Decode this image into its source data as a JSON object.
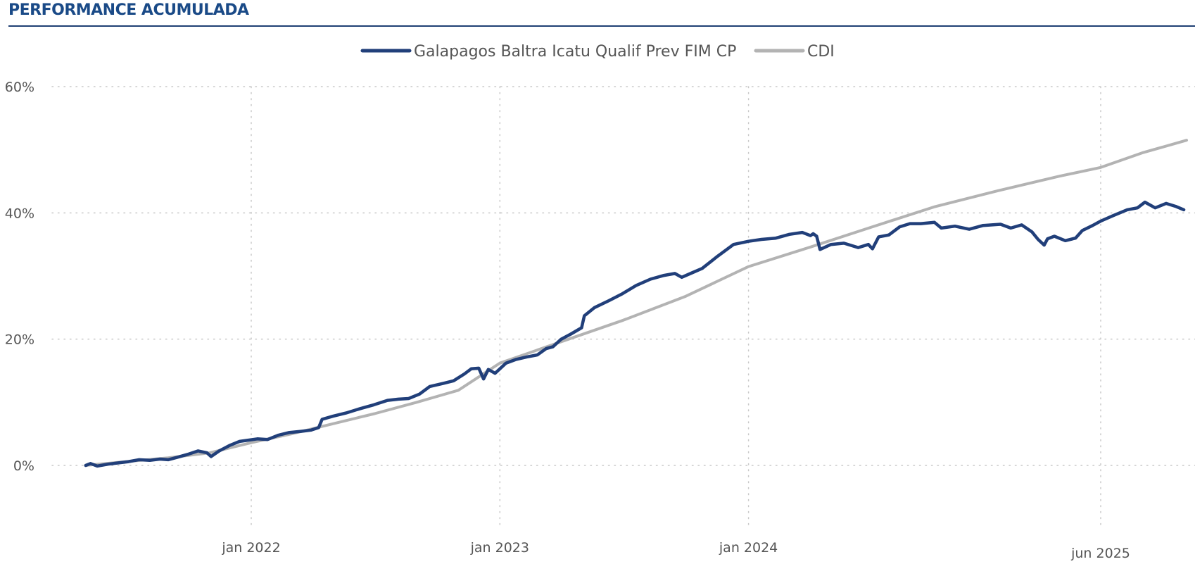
{
  "header": {
    "title": "PERFORMANCE ACUMULADA"
  },
  "colors": {
    "fund": "#213f7a",
    "cdi": "#b3b3b3",
    "title": "#1a4a87",
    "rule": "#1f3f73",
    "grid": "#c8c8c8",
    "text": "#555555"
  },
  "chart_data": {
    "type": "line",
    "title": "PERFORMANCE ACUMULADA",
    "xlabel": "",
    "ylabel": "",
    "ylim": [
      -10,
      60
    ],
    "xlim": [
      "2021-05-01",
      "2025-10-05"
    ],
    "y_ticks": [
      0,
      20,
      40,
      60
    ],
    "y_tick_labels": [
      "0%",
      "20%",
      "40%",
      "60%"
    ],
    "x_ticks": [
      "2022-01-01",
      "2023-01-01",
      "2024-01-01",
      "2025-06-01"
    ],
    "x_tick_labels": [
      "jan 2022",
      "jan 2023",
      "jan 2024",
      "jun 2025"
    ],
    "grid": true,
    "legend": "top-center",
    "series": [
      {
        "name": "Galapagos Baltra Icatu Qualif Prev FIM CP",
        "points": [
          [
            "2021-05-03",
            0.0
          ],
          [
            "2021-05-10",
            0.3
          ],
          [
            "2021-05-20",
            -0.1
          ],
          [
            "2021-06-05",
            0.2
          ],
          [
            "2021-06-20",
            0.4
          ],
          [
            "2021-07-05",
            0.6
          ],
          [
            "2021-07-20",
            0.9
          ],
          [
            "2021-08-05",
            0.8
          ],
          [
            "2021-08-20",
            1.0
          ],
          [
            "2021-09-01",
            0.9
          ],
          [
            "2021-09-15",
            1.3
          ],
          [
            "2021-10-01",
            1.8
          ],
          [
            "2021-10-15",
            2.3
          ],
          [
            "2021-10-28",
            2.0
          ],
          [
            "2021-11-03",
            1.4
          ],
          [
            "2021-11-15",
            2.3
          ],
          [
            "2021-12-01",
            3.2
          ],
          [
            "2021-12-15",
            3.8
          ],
          [
            "2022-01-10",
            4.2
          ],
          [
            "2022-01-25",
            4.1
          ],
          [
            "2022-02-10",
            4.8
          ],
          [
            "2022-02-25",
            5.2
          ],
          [
            "2022-03-15",
            5.4
          ],
          [
            "2022-03-30",
            5.6
          ],
          [
            "2022-04-10",
            6.0
          ],
          [
            "2022-04-15",
            7.3
          ],
          [
            "2022-05-01",
            7.8
          ],
          [
            "2022-05-20",
            8.3
          ],
          [
            "2022-06-10",
            9.0
          ],
          [
            "2022-06-30",
            9.6
          ],
          [
            "2022-07-20",
            10.3
          ],
          [
            "2022-08-05",
            10.5
          ],
          [
            "2022-08-20",
            10.6
          ],
          [
            "2022-09-05",
            11.3
          ],
          [
            "2022-09-20",
            12.5
          ],
          [
            "2022-10-10",
            13.0
          ],
          [
            "2022-10-25",
            13.4
          ],
          [
            "2022-11-10",
            14.5
          ],
          [
            "2022-11-20",
            15.3
          ],
          [
            "2022-12-01",
            15.4
          ],
          [
            "2022-12-08",
            13.7
          ],
          [
            "2022-12-15",
            15.2
          ],
          [
            "2022-12-25",
            14.6
          ],
          [
            "2023-01-10",
            16.2
          ],
          [
            "2023-01-25",
            16.8
          ],
          [
            "2023-02-10",
            17.2
          ],
          [
            "2023-02-25",
            17.5
          ],
          [
            "2023-03-10",
            18.5
          ],
          [
            "2023-03-20",
            18.8
          ],
          [
            "2023-04-01",
            20.0
          ],
          [
            "2023-04-15",
            20.8
          ],
          [
            "2023-05-01",
            21.8
          ],
          [
            "2023-05-05",
            23.7
          ],
          [
            "2023-05-20",
            25.0
          ],
          [
            "2023-06-10",
            26.1
          ],
          [
            "2023-06-30",
            27.2
          ],
          [
            "2023-07-20",
            28.5
          ],
          [
            "2023-08-10",
            29.5
          ],
          [
            "2023-08-30",
            30.1
          ],
          [
            "2023-09-15",
            30.4
          ],
          [
            "2023-09-25",
            29.8
          ],
          [
            "2023-10-10",
            30.5
          ],
          [
            "2023-10-25",
            31.2
          ],
          [
            "2023-11-15",
            33.0
          ],
          [
            "2023-12-10",
            35.0
          ],
          [
            "2024-01-01",
            35.5
          ],
          [
            "2024-01-20",
            35.8
          ],
          [
            "2024-02-10",
            36.0
          ],
          [
            "2024-03-01",
            36.6
          ],
          [
            "2024-03-20",
            36.9
          ],
          [
            "2024-04-01",
            36.4
          ],
          [
            "2024-04-05",
            36.7
          ],
          [
            "2024-04-10",
            36.3
          ],
          [
            "2024-04-15",
            34.2
          ],
          [
            "2024-05-01",
            35.0
          ],
          [
            "2024-05-20",
            35.2
          ],
          [
            "2024-06-10",
            34.5
          ],
          [
            "2024-06-25",
            35.0
          ],
          [
            "2024-07-01",
            34.3
          ],
          [
            "2024-07-10",
            36.2
          ],
          [
            "2024-07-25",
            36.5
          ],
          [
            "2024-08-10",
            37.8
          ],
          [
            "2024-08-25",
            38.3
          ],
          [
            "2024-09-10",
            38.3
          ],
          [
            "2024-09-30",
            38.5
          ],
          [
            "2024-10-10",
            37.6
          ],
          [
            "2024-10-30",
            37.9
          ],
          [
            "2024-11-20",
            37.4
          ],
          [
            "2024-12-10",
            38.0
          ],
          [
            "2025-01-05",
            38.2
          ],
          [
            "2025-01-20",
            37.6
          ],
          [
            "2025-02-05",
            38.1
          ],
          [
            "2025-02-20",
            37.0
          ],
          [
            "2025-03-01",
            35.8
          ],
          [
            "2025-03-10",
            34.9
          ],
          [
            "2025-03-15",
            35.9
          ],
          [
            "2025-03-25",
            36.3
          ],
          [
            "2025-04-10",
            35.6
          ],
          [
            "2025-04-25",
            36.0
          ],
          [
            "2025-05-05",
            37.2
          ],
          [
            "2025-05-20",
            38.0
          ],
          [
            "2025-06-01",
            38.7
          ],
          [
            "2025-06-20",
            39.6
          ],
          [
            "2025-07-10",
            40.5
          ],
          [
            "2025-07-25",
            40.8
          ],
          [
            "2025-08-05",
            41.7
          ],
          [
            "2025-08-20",
            40.8
          ],
          [
            "2025-09-05",
            41.5
          ],
          [
            "2025-09-20",
            41.0
          ],
          [
            "2025-10-01",
            40.5
          ]
        ]
      },
      {
        "name": "CDI",
        "points": [
          [
            "2021-05-03",
            0.0
          ],
          [
            "2021-07-01",
            0.6
          ],
          [
            "2021-09-01",
            1.2
          ],
          [
            "2021-11-01",
            2.0
          ],
          [
            "2022-01-01",
            3.6
          ],
          [
            "2022-03-01",
            5.0
          ],
          [
            "2022-05-01",
            6.6
          ],
          [
            "2022-07-01",
            8.2
          ],
          [
            "2022-09-01",
            10.0
          ],
          [
            "2022-11-01",
            11.9
          ],
          [
            "2023-01-01",
            16.2
          ],
          [
            "2023-04-01",
            19.6
          ],
          [
            "2023-07-01",
            23.0
          ],
          [
            "2023-10-01",
            26.8
          ],
          [
            "2024-01-01",
            31.5
          ],
          [
            "2024-04-01",
            34.6
          ],
          [
            "2024-07-01",
            37.8
          ],
          [
            "2024-10-01",
            41.0
          ],
          [
            "2025-01-01",
            43.5
          ],
          [
            "2025-04-01",
            45.8
          ],
          [
            "2025-06-01",
            47.2
          ],
          [
            "2025-08-01",
            49.5
          ],
          [
            "2025-10-05",
            51.5
          ]
        ]
      }
    ]
  }
}
